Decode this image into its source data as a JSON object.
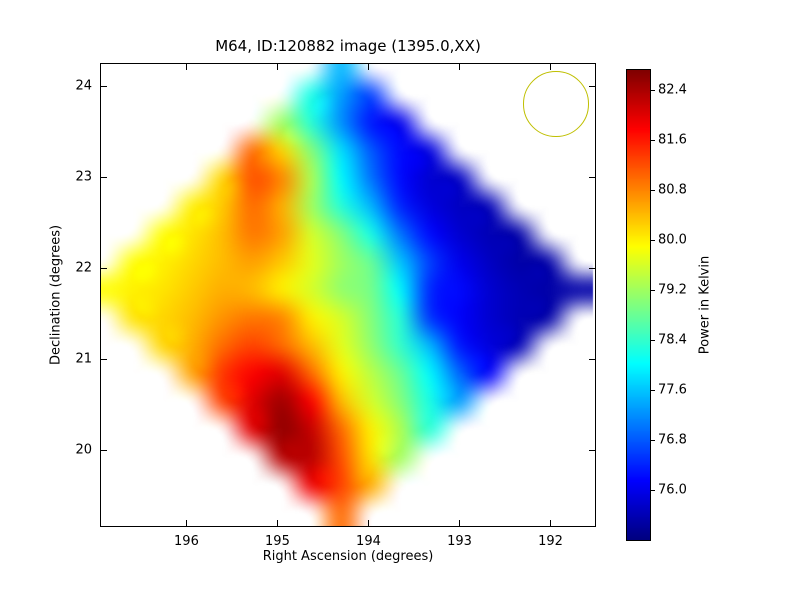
{
  "chart_data": {
    "type": "heatmap",
    "title": "M64, ID:120882 image (1395.0,XX)",
    "xlabel": "Right Ascension (degrees)",
    "ylabel": "Declination (degrees)",
    "colormap": "jet",
    "x_axis": {
      "range": [
        196.95,
        191.5
      ],
      "reversed": true,
      "ticks": [
        196,
        195,
        194,
        193,
        192
      ]
    },
    "y_axis": {
      "range": [
        19.15,
        24.25
      ],
      "ticks": [
        20,
        21,
        22,
        23,
        24
      ]
    },
    "colorbar": {
      "label": "Power in Kelvin",
      "vmin": 75.2,
      "vmax": 82.72,
      "ticks": [
        82.4,
        81.6,
        80.8,
        80.0,
        79.2,
        78.4,
        77.6,
        76.8,
        76.0
      ]
    },
    "beam_circle": {
      "ra_deg": 191.94,
      "dec_deg": 23.8,
      "radius_deg": 0.36,
      "color": "#bfbf00"
    },
    "grid": {
      "ra_deg": [
        196.9,
        196.575,
        196.25,
        195.925,
        195.6,
        195.275,
        194.95,
        194.625,
        194.3,
        193.975,
        193.65,
        193.325,
        193.0,
        192.675,
        192.35,
        192.025,
        191.7
      ],
      "dec_deg": [
        24.2,
        23.89,
        23.59,
        23.28,
        22.98,
        22.67,
        22.37,
        22.06,
        21.76,
        21.45,
        21.15,
        20.84,
        20.54,
        20.23,
        19.93,
        19.62,
        19.31
      ],
      "values_kelvin": [
        [
          null,
          null,
          null,
          null,
          null,
          null,
          null,
          null,
          77.5,
          null,
          null,
          null,
          null,
          null,
          null,
          null,
          null
        ],
        [
          null,
          null,
          null,
          null,
          null,
          null,
          null,
          78.2,
          77.3,
          76.6,
          null,
          null,
          null,
          null,
          null,
          null,
          null
        ],
        [
          null,
          null,
          null,
          null,
          null,
          null,
          79.2,
          78.3,
          77.2,
          76.3,
          76.0,
          null,
          null,
          null,
          null,
          null,
          null
        ],
        [
          null,
          null,
          null,
          null,
          null,
          81.0,
          80.2,
          79.0,
          77.8,
          76.8,
          76.2,
          75.9,
          null,
          null,
          null,
          null,
          null
        ],
        [
          null,
          null,
          null,
          null,
          80.2,
          81.2,
          80.8,
          79.3,
          78.0,
          77.0,
          76.2,
          75.8,
          75.7,
          null,
          null,
          null,
          null
        ],
        [
          null,
          null,
          null,
          80.0,
          80.3,
          81.0,
          80.5,
          79.2,
          78.3,
          77.5,
          76.4,
          75.9,
          75.7,
          75.6,
          null,
          null,
          null
        ],
        [
          null,
          null,
          79.9,
          80.1,
          80.4,
          80.9,
          80.6,
          79.6,
          79.0,
          78.2,
          77.0,
          76.2,
          75.8,
          75.6,
          75.5,
          null,
          null
        ],
        [
          null,
          79.9,
          80.0,
          80.2,
          80.4,
          80.6,
          80.3,
          79.7,
          79.2,
          78.8,
          77.6,
          76.6,
          76.0,
          75.7,
          75.5,
          75.5,
          null
        ],
        [
          79.9,
          80.0,
          80.1,
          80.3,
          80.5,
          80.4,
          80.0,
          79.6,
          79.1,
          78.9,
          78.0,
          76.4,
          76.2,
          75.8,
          75.6,
          75.5,
          75.5
        ],
        [
          null,
          80.1,
          80.2,
          80.4,
          80.7,
          80.9,
          80.8,
          80.0,
          79.6,
          79.0,
          78.3,
          76.5,
          76.1,
          75.8,
          75.6,
          75.5,
          null
        ],
        [
          null,
          null,
          80.2,
          80.5,
          81.0,
          81.3,
          81.0,
          80.4,
          79.7,
          79.1,
          78.4,
          77.5,
          76.3,
          75.9,
          75.6,
          null,
          null
        ],
        [
          null,
          null,
          null,
          80.6,
          81.4,
          81.8,
          82.0,
          81.0,
          80.0,
          79.4,
          78.8,
          78.0,
          76.9,
          76.1,
          null,
          null,
          null
        ],
        [
          null,
          null,
          null,
          null,
          81.3,
          82.0,
          82.5,
          81.8,
          80.4,
          79.6,
          79.0,
          78.2,
          77.3,
          null,
          null,
          null,
          null
        ],
        [
          null,
          null,
          null,
          null,
          null,
          82.0,
          82.6,
          82.2,
          81.0,
          80.0,
          79.3,
          78.3,
          null,
          null,
          null,
          null,
          null
        ],
        [
          null,
          null,
          null,
          null,
          null,
          null,
          82.3,
          82.3,
          81.2,
          80.1,
          79.2,
          null,
          null,
          null,
          null,
          null,
          null
        ],
        [
          null,
          null,
          null,
          null,
          null,
          null,
          null,
          81.9,
          81.3,
          80.5,
          null,
          null,
          null,
          null,
          null,
          null,
          null
        ],
        [
          null,
          null,
          null,
          null,
          null,
          null,
          null,
          null,
          81.0,
          null,
          null,
          null,
          null,
          null,
          null,
          null,
          null
        ]
      ]
    }
  }
}
